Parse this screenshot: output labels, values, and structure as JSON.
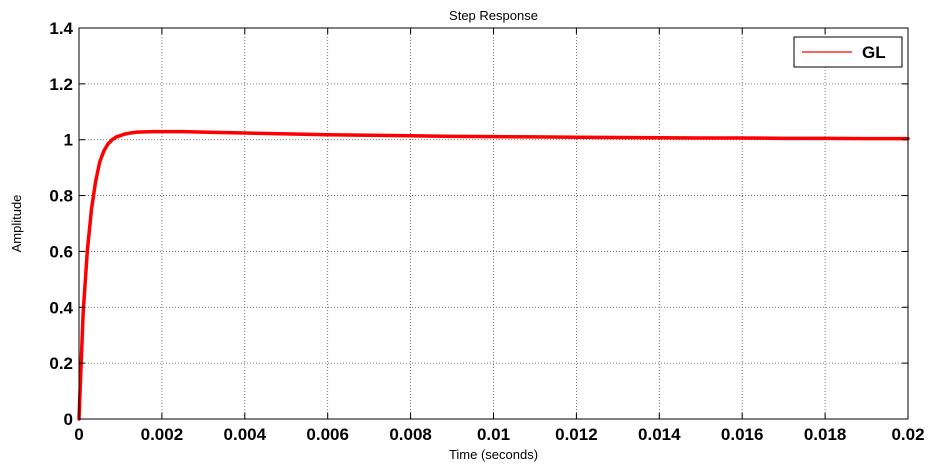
{
  "chart_data": {
    "type": "line",
    "title": "Step Response",
    "xlabel": "Time (seconds)",
    "ylabel": "Amplitude",
    "xlim": [
      0,
      0.02
    ],
    "ylim": [
      0,
      1.4
    ],
    "xticks": [
      0,
      0.002,
      0.004,
      0.006,
      0.008,
      0.01,
      0.012,
      0.014,
      0.016,
      0.018,
      0.02
    ],
    "xtick_labels": [
      "0",
      "0.002",
      "0.004",
      "0.006",
      "0.008",
      "0.01",
      "0.012",
      "0.014",
      "0.016",
      "0.018",
      "0.02"
    ],
    "yticks": [
      0,
      0.2,
      0.4,
      0.6,
      0.8,
      1,
      1.2,
      1.4
    ],
    "ytick_labels": [
      "0",
      "0.2",
      "0.4",
      "0.6",
      "0.8",
      "1",
      "1.2",
      "1.4"
    ],
    "grid": true,
    "legend_position": "top-right",
    "series": [
      {
        "name": "GL",
        "color": "#ff0000",
        "x": [
          0,
          0.0001,
          0.0002,
          0.0003,
          0.0004,
          0.0005,
          0.0006,
          0.0007,
          0.0008,
          0.0009,
          0.001,
          0.0011,
          0.0012,
          0.0014,
          0.0016,
          0.0018,
          0.002,
          0.0025,
          0.003,
          0.004,
          0.005,
          0.006,
          0.007,
          0.008,
          0.009,
          0.01,
          0.011,
          0.012,
          0.013,
          0.014,
          0.015,
          0.016,
          0.017,
          0.018,
          0.019,
          0.02
        ],
        "y": [
          0,
          0.38,
          0.6,
          0.75,
          0.85,
          0.92,
          0.96,
          0.985,
          1.0,
          1.01,
          1.015,
          1.02,
          1.023,
          1.027,
          1.028,
          1.029,
          1.029,
          1.029,
          1.027,
          1.024,
          1.021,
          1.018,
          1.016,
          1.014,
          1.012,
          1.011,
          1.01,
          1.009,
          1.008,
          1.007,
          1.006,
          1.006,
          1.005,
          1.005,
          1.004,
          1.004
        ]
      }
    ]
  }
}
